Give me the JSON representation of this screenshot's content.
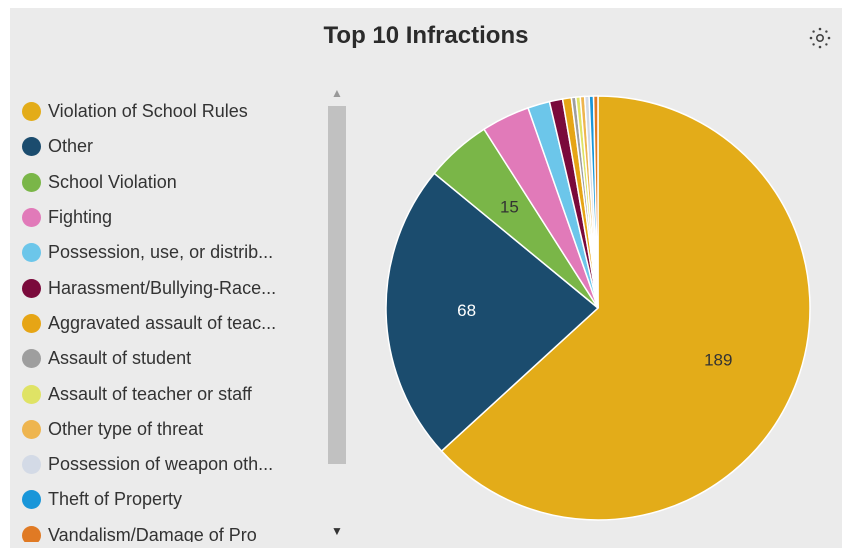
{
  "chart_data": {
    "type": "pie",
    "title": "Top 10 Infractions",
    "categories": [
      "Violation of School Rules",
      "Other",
      "School Violation",
      "Fighting",
      "Possession, use, or distrib...",
      "Harassment/Bullying-Race...",
      "Aggravated assault of teac...",
      "Assault of student",
      "Assault of teacher or staff",
      "Other type of threat",
      "Possession of weapon oth...",
      "Theft of Property",
      "Vandalism/Damage of Pro"
    ],
    "values": [
      189,
      68,
      15,
      11,
      5,
      3,
      2,
      1,
      1,
      1,
      1,
      1,
      1
    ],
    "data_labels": [
      "189",
      "68",
      "15",
      "",
      "",
      "",
      "",
      "",
      "",
      "",
      "",
      "",
      ""
    ],
    "colors": [
      "#e3ac19",
      "#1b4c6e",
      "#7ab648",
      "#e17ab9",
      "#6cc6ea",
      "#7a0a3b",
      "#e6a515",
      "#9e9e9e",
      "#dfe365",
      "#eeb54f",
      "#d3dae6",
      "#1996d9",
      "#e07a24"
    ],
    "label_colors": [
      "#333333",
      "#ffffff",
      "#333333"
    ],
    "legend_position": "left",
    "legend_scrollable": true
  },
  "toolbar": {
    "settings_icon": "settings-icon"
  },
  "legend": {
    "scroll_up_arrow": "▲",
    "scroll_down_arrow": "▼"
  }
}
